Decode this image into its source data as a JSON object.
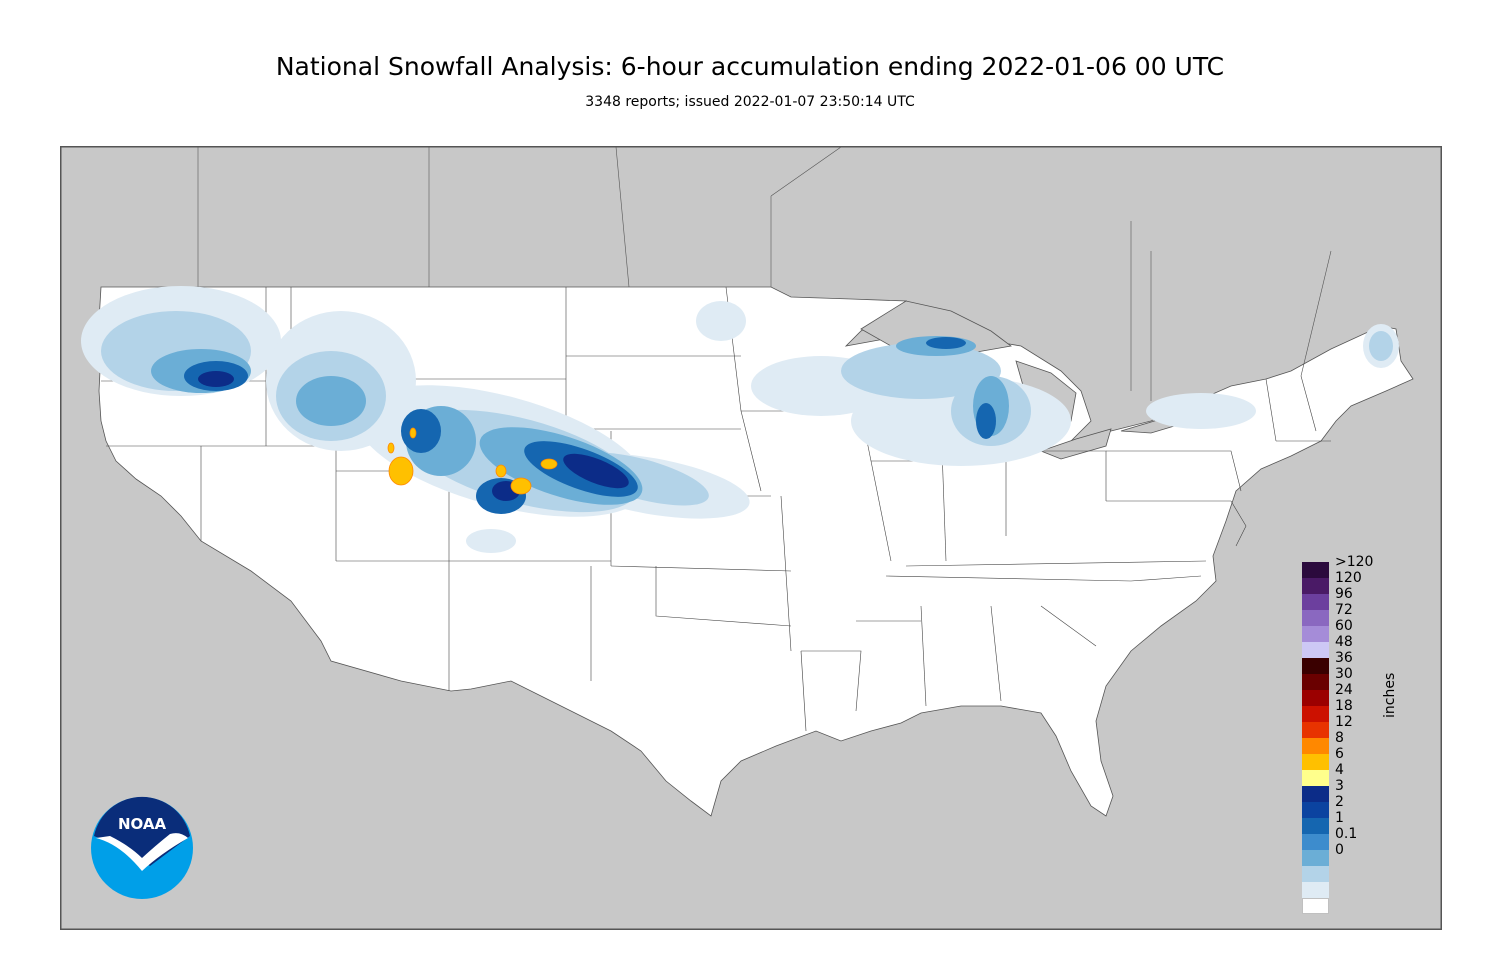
{
  "title": "National Snowfall Analysis: 6-hour accumulation ending 2022-01-06 00 UTC",
  "subtitle": "3348 reports; issued 2022-01-07 23:50:14 UTC",
  "legend": {
    "units": "inches",
    "items": [
      {
        "label": ">120",
        "color": "#2b0a3d"
      },
      {
        "label": "120",
        "color": "#4a1a66"
      },
      {
        "label": "96",
        "color": "#6c3f9e"
      },
      {
        "label": "72",
        "color": "#8a68c0"
      },
      {
        "label": "60",
        "color": "#a58cd8"
      },
      {
        "label": "48",
        "color": "#cdc8f5"
      },
      {
        "label": "36",
        "color": "#3a0000"
      },
      {
        "label": "30",
        "color": "#6a0000"
      },
      {
        "label": "24",
        "color": "#9b0000"
      },
      {
        "label": "18",
        "color": "#cc1100"
      },
      {
        "label": "12",
        "color": "#e83300"
      },
      {
        "label": "8",
        "color": "#ff8800"
      },
      {
        "label": "6",
        "color": "#ffc000"
      },
      {
        "label": "4",
        "color": "#ffff8c"
      },
      {
        "label": "3",
        "color": "#0c2c88"
      },
      {
        "label": "2",
        "color": "#0b43a0"
      },
      {
        "label": "1",
        "color": "#1566b0"
      },
      {
        "label": "0.1",
        "color": "#3d8ccd"
      },
      {
        "label": "0",
        "color": "#6baed6"
      },
      {
        "label": "",
        "color": "#b3d3e8"
      },
      {
        "label": "",
        "color": "#dfebf4"
      },
      {
        "label": "",
        "color": "#ffffff"
      }
    ]
  },
  "logo": {
    "text": "NOAA"
  }
}
